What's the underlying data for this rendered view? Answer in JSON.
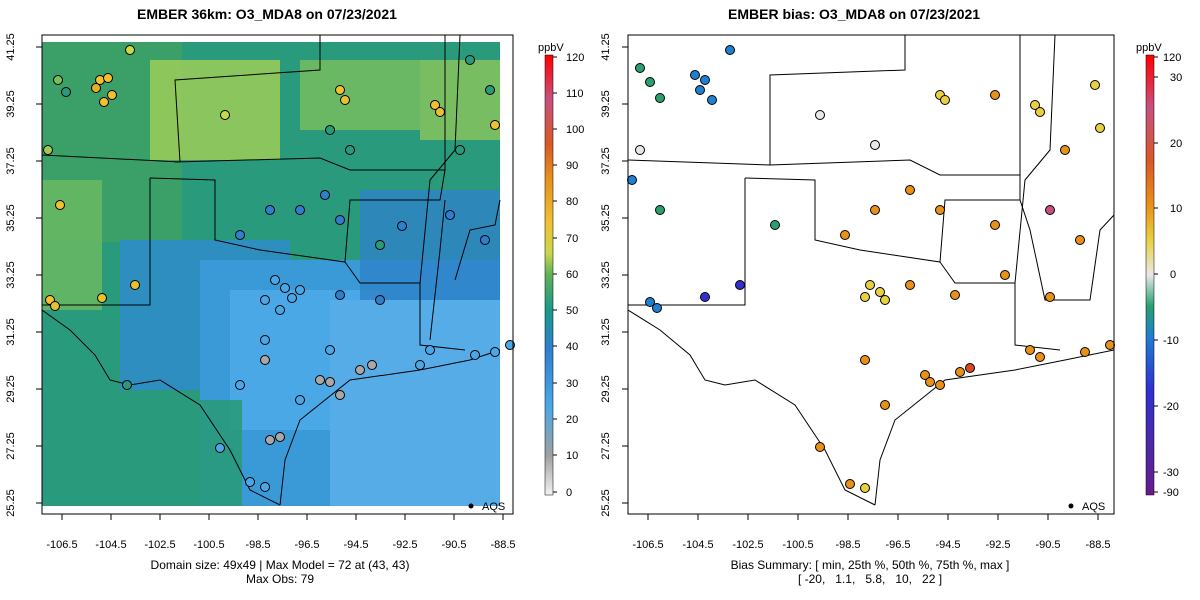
{
  "left": {
    "title": "EMBER 36km: O3_MDA8 on 07/23/2021",
    "caption_line1": "Domain size: 49x49 | Max Model = 72 at (43, 43)",
    "caption_line2": "Max Obs: 79",
    "unit": "ppbV",
    "colorbar_ticks": [
      "120",
      "110",
      "100",
      "90",
      "80",
      "70",
      "60",
      "50",
      "40",
      "30",
      "20",
      "10",
      "0"
    ],
    "legend": "AQS",
    "x_ticks": [
      "-106.5",
      "-104.5",
      "-102.5",
      "-100.5",
      "-98.5",
      "-96.5",
      "-94.5",
      "-92.5",
      "-90.5",
      "-88.5"
    ],
    "y_ticks": [
      "41.25",
      "39.25",
      "37.25",
      "35.25",
      "33.25",
      "31.25",
      "29.25",
      "27.25",
      "25.25"
    ]
  },
  "right": {
    "title": "EMBER bias: O3_MDA8 on 07/23/2021",
    "caption_line1": "Bias Summary: [ min, 25th %, 50th %, 75th %, max ]",
    "caption_line2": "[ -20,   1.1,   5.8,   10,   22 ]",
    "unit": "ppbV",
    "colorbar_ticks": [
      "120",
      "30",
      "20",
      "10",
      "0",
      "-10",
      "-20",
      "-30",
      "-90"
    ],
    "legend": "AQS",
    "x_ticks": [
      "-106.5",
      "-104.5",
      "-102.5",
      "-100.5",
      "-98.5",
      "-96.5",
      "-94.5",
      "-92.5",
      "-90.5",
      "-88.5"
    ],
    "y_ticks": [
      "41.25",
      "39.25",
      "37.25",
      "35.25",
      "33.25",
      "31.25",
      "29.25",
      "27.25",
      "25.25"
    ]
  },
  "colors": {
    "model_scale": [
      "#ffffff",
      "#a8a8a8",
      "#4aa8e8",
      "#2f7fd0",
      "#179a8a",
      "#5fb05a",
      "#c8d84a",
      "#f2c030",
      "#e89018",
      "#d85828",
      "#c85080",
      "#e0206a",
      "#ff0000"
    ],
    "bias_scale": [
      "#6a1a8a",
      "#3030d0",
      "#1f7fd0",
      "#2aa070",
      "#e8e8e8",
      "#e8d040",
      "#e89018",
      "#d84a20",
      "#ff0000"
    ]
  }
}
